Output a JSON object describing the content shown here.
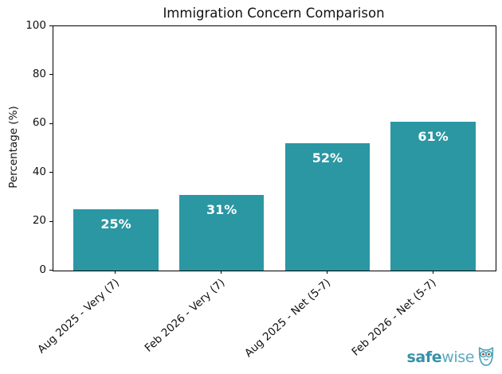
{
  "chart_data": {
    "type": "bar",
    "title": "Immigration Concern Comparison",
    "ylabel": "Percentage (%)",
    "xlabel": "",
    "categories": [
      "Aug 2025 - Very (7)",
      "Feb 2026 - Very (7)",
      "Aug 2025 - Net (5-7)",
      "Feb 2026 - Net (5-7)"
    ],
    "values": [
      25,
      31,
      52,
      61
    ],
    "bar_labels": [
      "25%",
      "31%",
      "52%",
      "61%"
    ],
    "ylim": [
      0,
      100
    ],
    "yticks": [
      0,
      20,
      40,
      60,
      80,
      100
    ],
    "grid": false,
    "legend": "none",
    "bar_color": "#2a97a3",
    "bar_label_color": "#ffffff",
    "axis_color": "#000000",
    "text_color": "#111111"
  },
  "branding": {
    "logo_bold": "safe",
    "logo_light": "wise",
    "logo_color_bold": "#3691a9",
    "logo_color_light": "#5aaabf",
    "owl_icon": "owl-icon"
  }
}
